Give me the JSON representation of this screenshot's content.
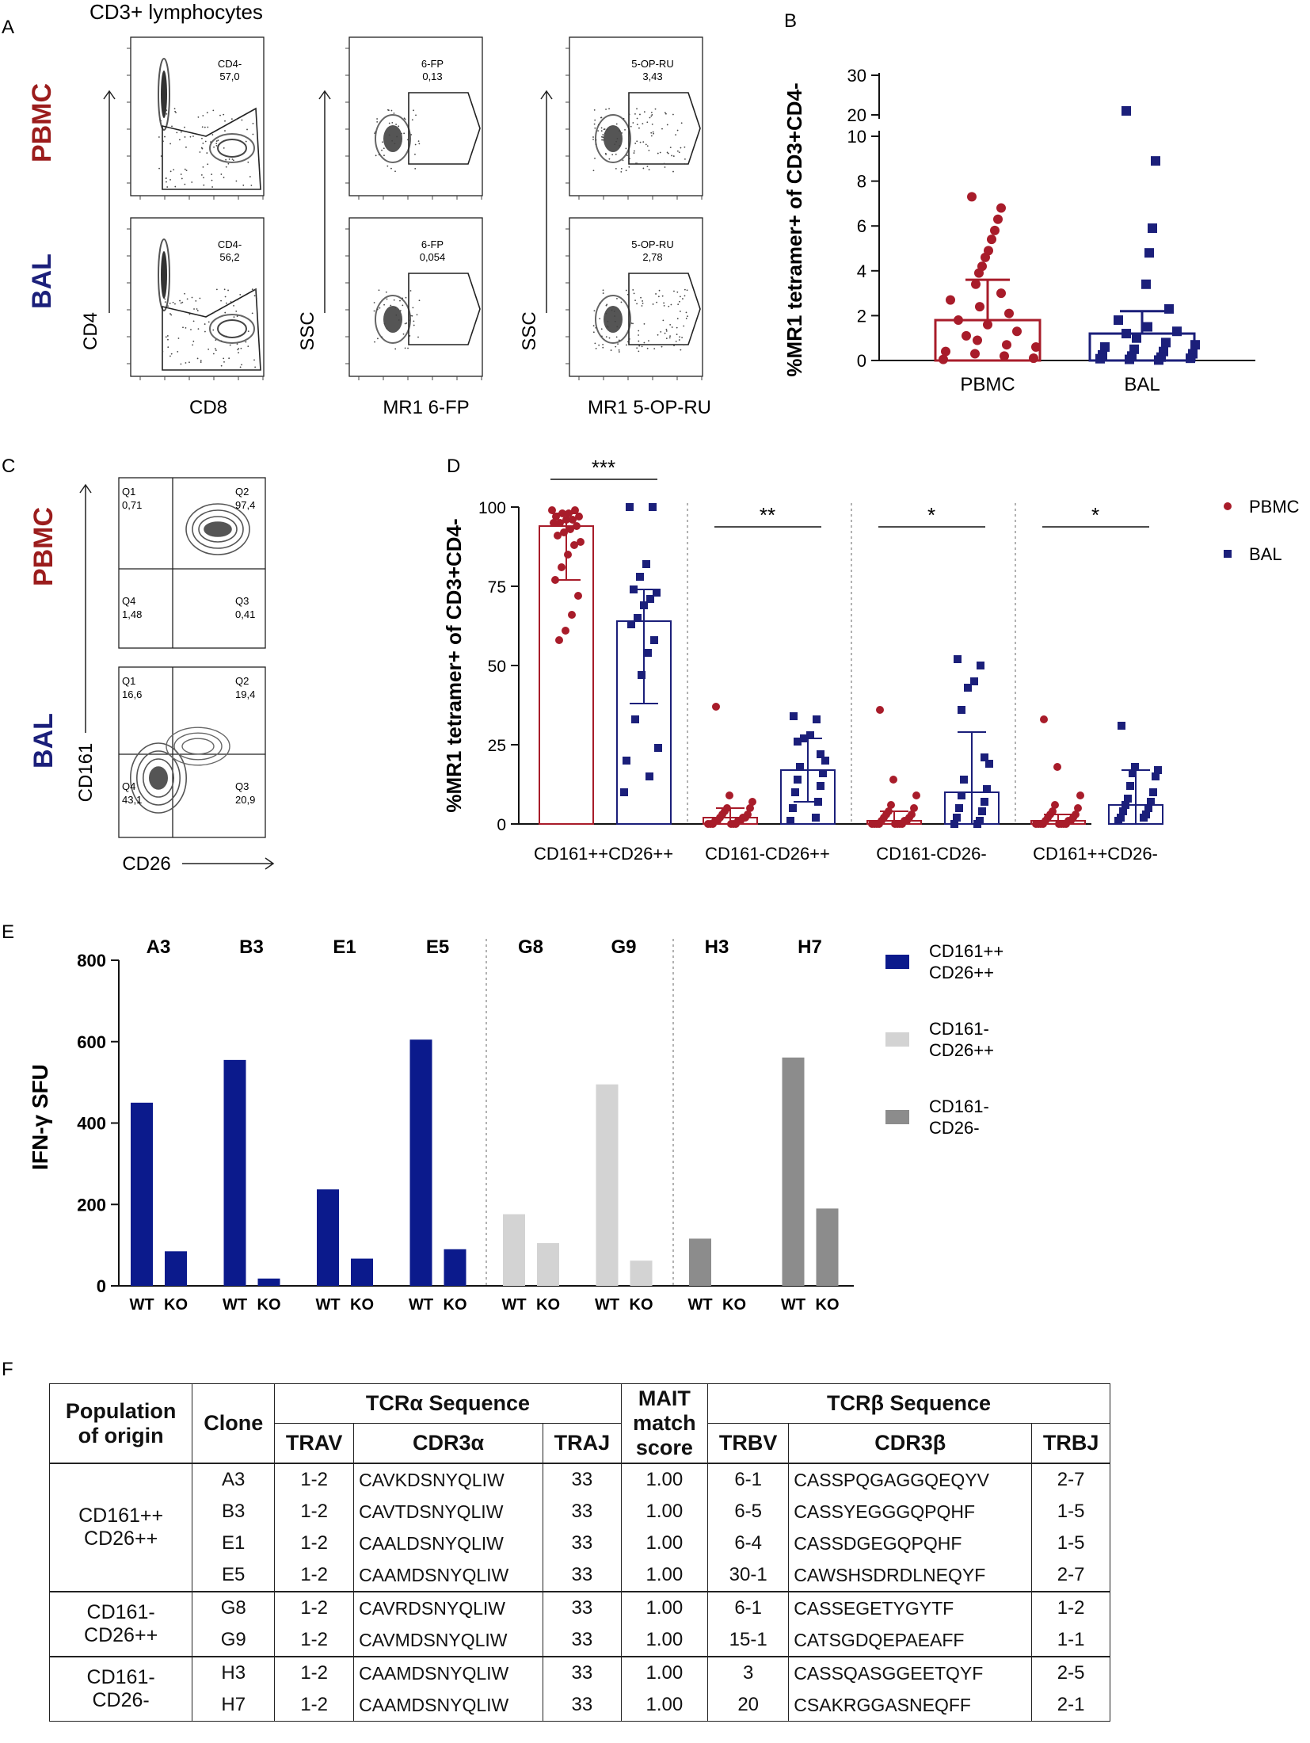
{
  "panel_letters": [
    "A",
    "B",
    "C",
    "D",
    "E",
    "F"
  ],
  "panelA": {
    "title": "CD3+ lymphocytes",
    "row_labels": [
      {
        "text": "PBMC",
        "color": "#9b1c1c"
      },
      {
        "text": "BAL",
        "color": "#1b1f7a"
      }
    ],
    "col_xlabels": [
      "CD8",
      "MR1 6-FP",
      "MR1 5-OP-RU"
    ],
    "col_ylabels": [
      "CD4",
      "SSC",
      "SSC"
    ],
    "gates": [
      {
        "name": "CD4-",
        "value": "57,0"
      },
      {
        "name": "6-FP",
        "value": "0,13"
      },
      {
        "name": "5-OP-RU",
        "value": "3,43"
      },
      {
        "name": "CD4-",
        "value": "56,2"
      },
      {
        "name": "6-FP",
        "value": "0,054"
      },
      {
        "name": "5-OP-RU",
        "value": "2,78"
      }
    ]
  },
  "panelC": {
    "row_labels": [
      {
        "text": "PBMC",
        "color": "#9b1c1c"
      },
      {
        "text": "BAL",
        "color": "#1b1f7a"
      }
    ],
    "xlabel": "CD26",
    "ylabel": "CD161",
    "quadrants": [
      [
        {
          "q": "Q1",
          "v": "0,71"
        },
        {
          "q": "Q2",
          "v": "97,4"
        },
        {
          "q": "Q4",
          "v": "1,48"
        },
        {
          "q": "Q3",
          "v": "0,41"
        }
      ],
      [
        {
          "q": "Q1",
          "v": "16,6"
        },
        {
          "q": "Q2",
          "v": "19,4"
        },
        {
          "q": "Q4",
          "v": "43,1"
        },
        {
          "q": "Q3",
          "v": "20,9"
        }
      ]
    ]
  },
  "chart_data": [
    {
      "panel": "B",
      "type": "scatter",
      "ylabel": "%MR1 tetramer+ of CD3+CD4-",
      "categories": [
        "PBMC",
        "BAL"
      ],
      "ylim": [
        0,
        30
      ],
      "axis_break": [
        10,
        20
      ],
      "yticks": [
        0,
        2,
        4,
        6,
        8,
        10,
        20,
        30
      ],
      "series": [
        {
          "name": "PBMC",
          "color": "#a81c2a",
          "marker": "circle",
          "mean": 1.8,
          "sd_upper": 3.6,
          "values": [
            7.3,
            6.8,
            6.3,
            5.8,
            5.4,
            4.9,
            4.6,
            4.2,
            3.9,
            3.4,
            3.0,
            2.7,
            2.4,
            2.1,
            1.8,
            1.6,
            1.3,
            1.1,
            0.9,
            0.7,
            0.6,
            0.4,
            0.3,
            0.2,
            0.1,
            0.05
          ]
        },
        {
          "name": "BAL",
          "color": "#1b1f7a",
          "marker": "square",
          "mean": 1.2,
          "sd_upper": 2.2,
          "values": [
            21,
            8.9,
            5.9,
            4.8,
            3.4,
            2.3,
            1.8,
            1.5,
            1.3,
            1.2,
            1.0,
            0.8,
            0.7,
            0.6,
            0.5,
            0.4,
            0.3,
            0.25,
            0.2,
            0.15,
            0.1,
            0.08,
            0.05,
            0.02
          ]
        }
      ]
    },
    {
      "panel": "D",
      "type": "scatter",
      "ylabel": "%MR1 tetramer+ of CD3+CD4-",
      "categories": [
        "CD161++CD26++",
        "CD161-CD26++",
        "CD161-CD26-",
        "CD161++CD26-"
      ],
      "ylim": [
        0,
        100
      ],
      "yticks": [
        0,
        25,
        50,
        75,
        100
      ],
      "significance": [
        "***",
        "**",
        "*",
        "*"
      ],
      "legend": [
        {
          "label": "PBMC",
          "color": "#a81c2a",
          "marker": "circle"
        },
        {
          "label": "BAL",
          "color": "#1b1f7a",
          "marker": "square"
        }
      ],
      "series": [
        {
          "name": "PBMC",
          "color": "#a81c2a",
          "marker": "circle",
          "mean": [
            94,
            2,
            1,
            1
          ],
          "sd": [
            [
              77,
              98
            ],
            [
              0,
              5
            ],
            [
              0,
              4
            ],
            [
              0,
              3
            ]
          ],
          "values": [
            [
              99,
              99,
              98,
              98,
              97,
              97,
              96,
              96,
              95,
              95,
              94,
              93,
              92,
              91,
              89,
              88,
              85,
              81,
              77,
              72,
              66,
              61,
              58
            ],
            [
              37,
              9,
              7,
              5,
              5,
              4,
              3,
              3,
              2,
              2,
              2,
              1,
              1,
              1,
              1,
              0,
              0,
              0,
              0,
              0,
              0
            ],
            [
              36,
              14,
              9,
              6,
              5,
              4,
              3,
              3,
              2,
              2,
              1,
              1,
              1,
              0,
              0,
              0,
              0,
              0,
              0,
              0,
              0
            ],
            [
              33,
              18,
              9,
              6,
              5,
              4,
              3,
              3,
              2,
              2,
              1,
              1,
              1,
              0,
              0,
              0,
              0,
              0,
              0,
              0,
              0
            ]
          ]
        },
        {
          "name": "BAL",
          "color": "#1b1f7a",
          "marker": "square",
          "mean": [
            64,
            17,
            10,
            6
          ],
          "sd": [
            [
              38,
              74
            ],
            [
              7,
              27
            ],
            [
              0,
              29
            ],
            [
              0,
              17
            ]
          ],
          "values": [
            [
              100,
              100,
              82,
              78,
              74,
              73,
              71,
              69,
              65,
              63,
              58,
              54,
              47,
              33,
              24,
              20,
              15,
              10
            ],
            [
              34,
              33,
              28,
              27,
              26,
              22,
              20,
              18,
              16,
              14,
              12,
              10,
              7,
              5,
              2,
              1
            ],
            [
              52,
              50,
              45,
              43,
              36,
              21,
              19,
              14,
              11,
              9,
              7,
              5,
              4,
              2,
              1,
              0,
              0
            ],
            [
              31,
              18,
              17,
              16,
              15,
              12,
              10,
              8,
              7,
              6,
              5,
              4,
              3,
              2,
              2,
              1
            ]
          ]
        }
      ]
    },
    {
      "panel": "E",
      "type": "bar",
      "ylabel": "IFN-γ SFU",
      "ylim": [
        0,
        800
      ],
      "yticks": [
        0,
        200,
        400,
        600,
        800
      ],
      "clones": [
        "A3",
        "B3",
        "E1",
        "E5",
        "G8",
        "G9",
        "H3",
        "H7"
      ],
      "bar_labels": [
        "WT",
        "KO"
      ],
      "wt": [
        450,
        555,
        237,
        605,
        176,
        495,
        116,
        561
      ],
      "ko": [
        85,
        18,
        67,
        90,
        105,
        62,
        0,
        190
      ],
      "groups": [
        0,
        0,
        0,
        0,
        1,
        1,
        2,
        2
      ],
      "legend": [
        {
          "label": [
            "CD161++",
            "CD26++"
          ],
          "color": "#0b1a8c"
        },
        {
          "label": [
            "CD161-",
            "CD26++"
          ],
          "color": "#d3d3d3"
        },
        {
          "label": [
            "CD161-",
            "CD26-"
          ],
          "color": "#8c8c8c"
        }
      ]
    }
  ],
  "table": {
    "header_top": {
      "population": [
        "Population",
        "of origin"
      ],
      "clone": "Clone",
      "tcra": "TCRα Sequence",
      "mait": [
        "MAIT",
        "match",
        "score"
      ],
      "tcrb": "TCRβ Sequence"
    },
    "header_sub": [
      "TRAV",
      "CDR3α",
      "TRAJ",
      "TRBV",
      "CDR3β",
      "TRBJ"
    ],
    "groups": [
      {
        "population": [
          "CD161++",
          "CD26++"
        ],
        "rows": [
          {
            "clone": "A3",
            "trav": "1-2",
            "cdr3a": "CAVKDSNYQLIW",
            "traj": "33",
            "score": "1.00",
            "trbv": "6-1",
            "cdr3b": "CASSPQGAGGQEQYV",
            "trbj": "2-7"
          },
          {
            "clone": "B3",
            "trav": "1-2",
            "cdr3a": "CAVTDSNYQLIW",
            "traj": "33",
            "score": "1.00",
            "trbv": "6-5",
            "cdr3b": "CASSYEGGGQPQHF",
            "trbj": "1-5"
          },
          {
            "clone": "E1",
            "trav": "1-2",
            "cdr3a": "CAALDSNYQLIW",
            "traj": "33",
            "score": "1.00",
            "trbv": "6-4",
            "cdr3b": "CASSDGEGQPQHF",
            "trbj": "1-5"
          },
          {
            "clone": "E5",
            "trav": "1-2",
            "cdr3a": "CAAMDSNYQLIW",
            "traj": "33",
            "score": "1.00",
            "trbv": "30-1",
            "cdr3b": "CAWSHSDRDLNEQYF",
            "trbj": "2-7"
          }
        ]
      },
      {
        "population": [
          "CD161-",
          "CD26++"
        ],
        "rows": [
          {
            "clone": "G8",
            "trav": "1-2",
            "cdr3a": "CAVRDSNYQLIW",
            "traj": "33",
            "score": "1.00",
            "trbv": "6-1",
            "cdr3b": "CASSEGETYGYTF",
            "trbj": "1-2"
          },
          {
            "clone": "G9",
            "trav": "1-2",
            "cdr3a": "CAVMDSNYQLIW",
            "traj": "33",
            "score": "1.00",
            "trbv": "15-1",
            "cdr3b": "CATSGDQEPAEAFF",
            "trbj": "1-1"
          }
        ]
      },
      {
        "population": [
          "CD161-",
          "CD26-"
        ],
        "rows": [
          {
            "clone": "H3",
            "trav": "1-2",
            "cdr3a": "CAAMDSNYQLIW",
            "traj": "33",
            "score": "1.00",
            "trbv": "3",
            "cdr3b": "CASSQASGGEETQYF",
            "trbj": "2-5"
          },
          {
            "clone": "H7",
            "trav": "1-2",
            "cdr3a": "CAAMDSNYQLIW",
            "traj": "33",
            "score": "1.00",
            "trbv": "20",
            "cdr3b": "CSAKRGGASNEQFF",
            "trbj": "2-1"
          }
        ]
      }
    ]
  }
}
